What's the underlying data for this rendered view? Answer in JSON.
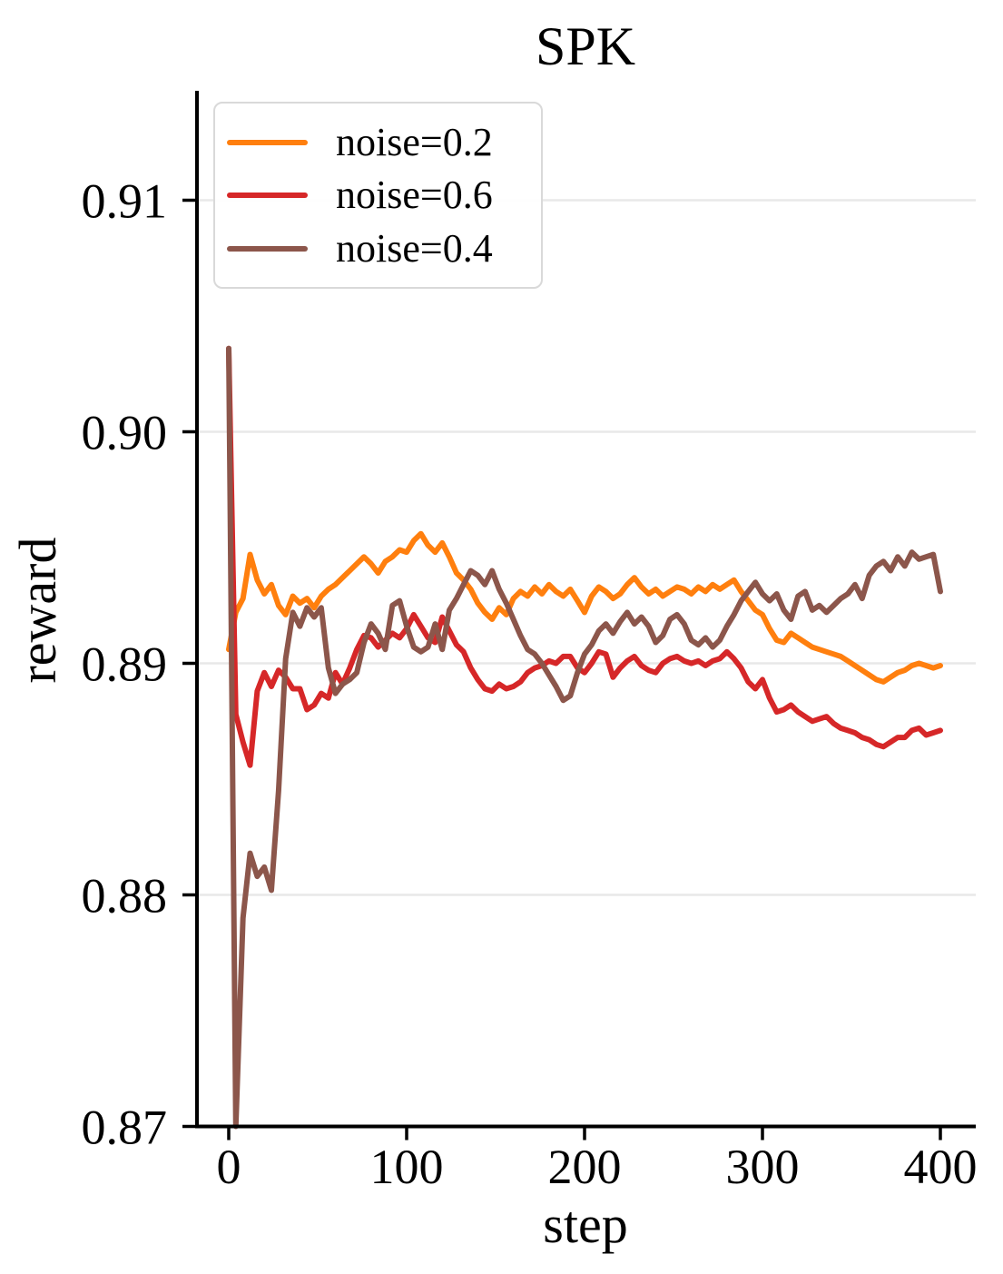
{
  "figure": {
    "title": "SPK"
  },
  "chart_data": {
    "type": "line",
    "title": "SPK",
    "xlabel": "step",
    "ylabel": "reward",
    "x_ticks": [
      0,
      100,
      200,
      300,
      400
    ],
    "y_ticks": [
      0.87,
      0.88,
      0.89,
      0.9,
      0.91
    ],
    "y_tick_labels": [
      "0.87",
      "0.88",
      "0.89",
      "0.90",
      "0.91"
    ],
    "xlim": [
      -19,
      420
    ],
    "ylim": [
      0.87,
      0.9149
    ],
    "grid": "horizontal-only",
    "grid_color": "#e8e8e8",
    "axis_color": "#000000",
    "background_color": "#ffffff",
    "legend_position": "upper-left",
    "legend": [
      {
        "label": "noise=0.2",
        "color": "#ff7f0e"
      },
      {
        "label": "noise=0.6",
        "color": "#d62728"
      },
      {
        "label": "noise=0.4",
        "color": "#8c564b"
      }
    ],
    "x_sampling": {
      "start": 0,
      "interval": 4,
      "end": 400
    },
    "series": [
      {
        "name": "noise=0.2",
        "color": "#ff7f0e",
        "values": [
          0.8906,
          0.8922,
          0.8928,
          0.8947,
          0.8936,
          0.893,
          0.8934,
          0.8925,
          0.8921,
          0.8929,
          0.8926,
          0.8928,
          0.8924,
          0.8929,
          0.8932,
          0.8934,
          0.8937,
          0.894,
          0.8943,
          0.8946,
          0.8943,
          0.8939,
          0.8944,
          0.8946,
          0.8949,
          0.8948,
          0.8953,
          0.8956,
          0.8951,
          0.8948,
          0.8952,
          0.8946,
          0.8939,
          0.8936,
          0.8932,
          0.8926,
          0.8922,
          0.8919,
          0.8924,
          0.8921,
          0.8928,
          0.8931,
          0.8929,
          0.8933,
          0.893,
          0.8934,
          0.8931,
          0.8929,
          0.8932,
          0.8927,
          0.8922,
          0.8929,
          0.8933,
          0.8931,
          0.8928,
          0.893,
          0.8934,
          0.8937,
          0.8933,
          0.893,
          0.8932,
          0.8929,
          0.8931,
          0.8933,
          0.8932,
          0.893,
          0.8933,
          0.8931,
          0.8934,
          0.8932,
          0.8934,
          0.8936,
          0.8931,
          0.8927,
          0.8923,
          0.8921,
          0.8915,
          0.891,
          0.8909,
          0.8913,
          0.8911,
          0.8909,
          0.8907,
          0.8906,
          0.8905,
          0.8904,
          0.8903,
          0.8901,
          0.8899,
          0.8897,
          0.8895,
          0.8893,
          0.8892,
          0.8894,
          0.8896,
          0.8897,
          0.8899,
          0.89,
          0.8899,
          0.8898,
          0.8899
        ]
      },
      {
        "name": "noise=0.6",
        "color": "#d62728",
        "values": [
          0.9036,
          0.8878,
          0.8866,
          0.8856,
          0.8888,
          0.8896,
          0.889,
          0.8897,
          0.8894,
          0.8889,
          0.8889,
          0.888,
          0.8882,
          0.8887,
          0.8885,
          0.8896,
          0.8891,
          0.8898,
          0.8906,
          0.8912,
          0.8911,
          0.8907,
          0.891,
          0.8913,
          0.8911,
          0.8915,
          0.8921,
          0.8916,
          0.8911,
          0.8909,
          0.892,
          0.8914,
          0.8908,
          0.8905,
          0.8898,
          0.8893,
          0.8889,
          0.8888,
          0.8891,
          0.8889,
          0.889,
          0.8892,
          0.8896,
          0.8898,
          0.8899,
          0.8901,
          0.89,
          0.8903,
          0.8903,
          0.8898,
          0.8896,
          0.89,
          0.8905,
          0.8904,
          0.8894,
          0.8898,
          0.8901,
          0.8903,
          0.8899,
          0.8897,
          0.8896,
          0.89,
          0.8902,
          0.8903,
          0.8901,
          0.89,
          0.8901,
          0.8899,
          0.8901,
          0.8902,
          0.8905,
          0.8902,
          0.8898,
          0.8892,
          0.8889,
          0.8893,
          0.8885,
          0.8879,
          0.888,
          0.8882,
          0.8879,
          0.8877,
          0.8875,
          0.8876,
          0.8877,
          0.8874,
          0.8872,
          0.8871,
          0.887,
          0.8868,
          0.8867,
          0.8865,
          0.8864,
          0.8866,
          0.8868,
          0.8868,
          0.8871,
          0.8872,
          0.8869,
          0.887,
          0.8871
        ]
      },
      {
        "name": "noise=0.4",
        "color": "#8c564b",
        "values": [
          0.9036,
          0.87,
          0.879,
          0.8818,
          0.8808,
          0.8812,
          0.8802,
          0.8845,
          0.8902,
          0.8922,
          0.8916,
          0.8924,
          0.892,
          0.8924,
          0.8898,
          0.8887,
          0.8891,
          0.8893,
          0.8896,
          0.8909,
          0.8917,
          0.8913,
          0.8906,
          0.8925,
          0.8927,
          0.8916,
          0.8907,
          0.8905,
          0.8907,
          0.8917,
          0.8906,
          0.8923,
          0.8928,
          0.8934,
          0.894,
          0.8938,
          0.8934,
          0.894,
          0.8932,
          0.8926,
          0.8919,
          0.8912,
          0.8906,
          0.8904,
          0.89,
          0.8895,
          0.889,
          0.8884,
          0.8886,
          0.8896,
          0.8904,
          0.8908,
          0.8914,
          0.8917,
          0.8913,
          0.8918,
          0.8922,
          0.8917,
          0.892,
          0.8916,
          0.8909,
          0.8912,
          0.8919,
          0.8921,
          0.8917,
          0.891,
          0.8908,
          0.8911,
          0.8907,
          0.891,
          0.8916,
          0.8921,
          0.8927,
          0.8931,
          0.8935,
          0.893,
          0.8927,
          0.893,
          0.8923,
          0.8919,
          0.8929,
          0.8931,
          0.8923,
          0.8925,
          0.8922,
          0.8925,
          0.8928,
          0.893,
          0.8934,
          0.8928,
          0.8938,
          0.8942,
          0.8944,
          0.894,
          0.8946,
          0.8942,
          0.8948,
          0.8945,
          0.8946,
          0.8947,
          0.8931
        ]
      }
    ]
  }
}
